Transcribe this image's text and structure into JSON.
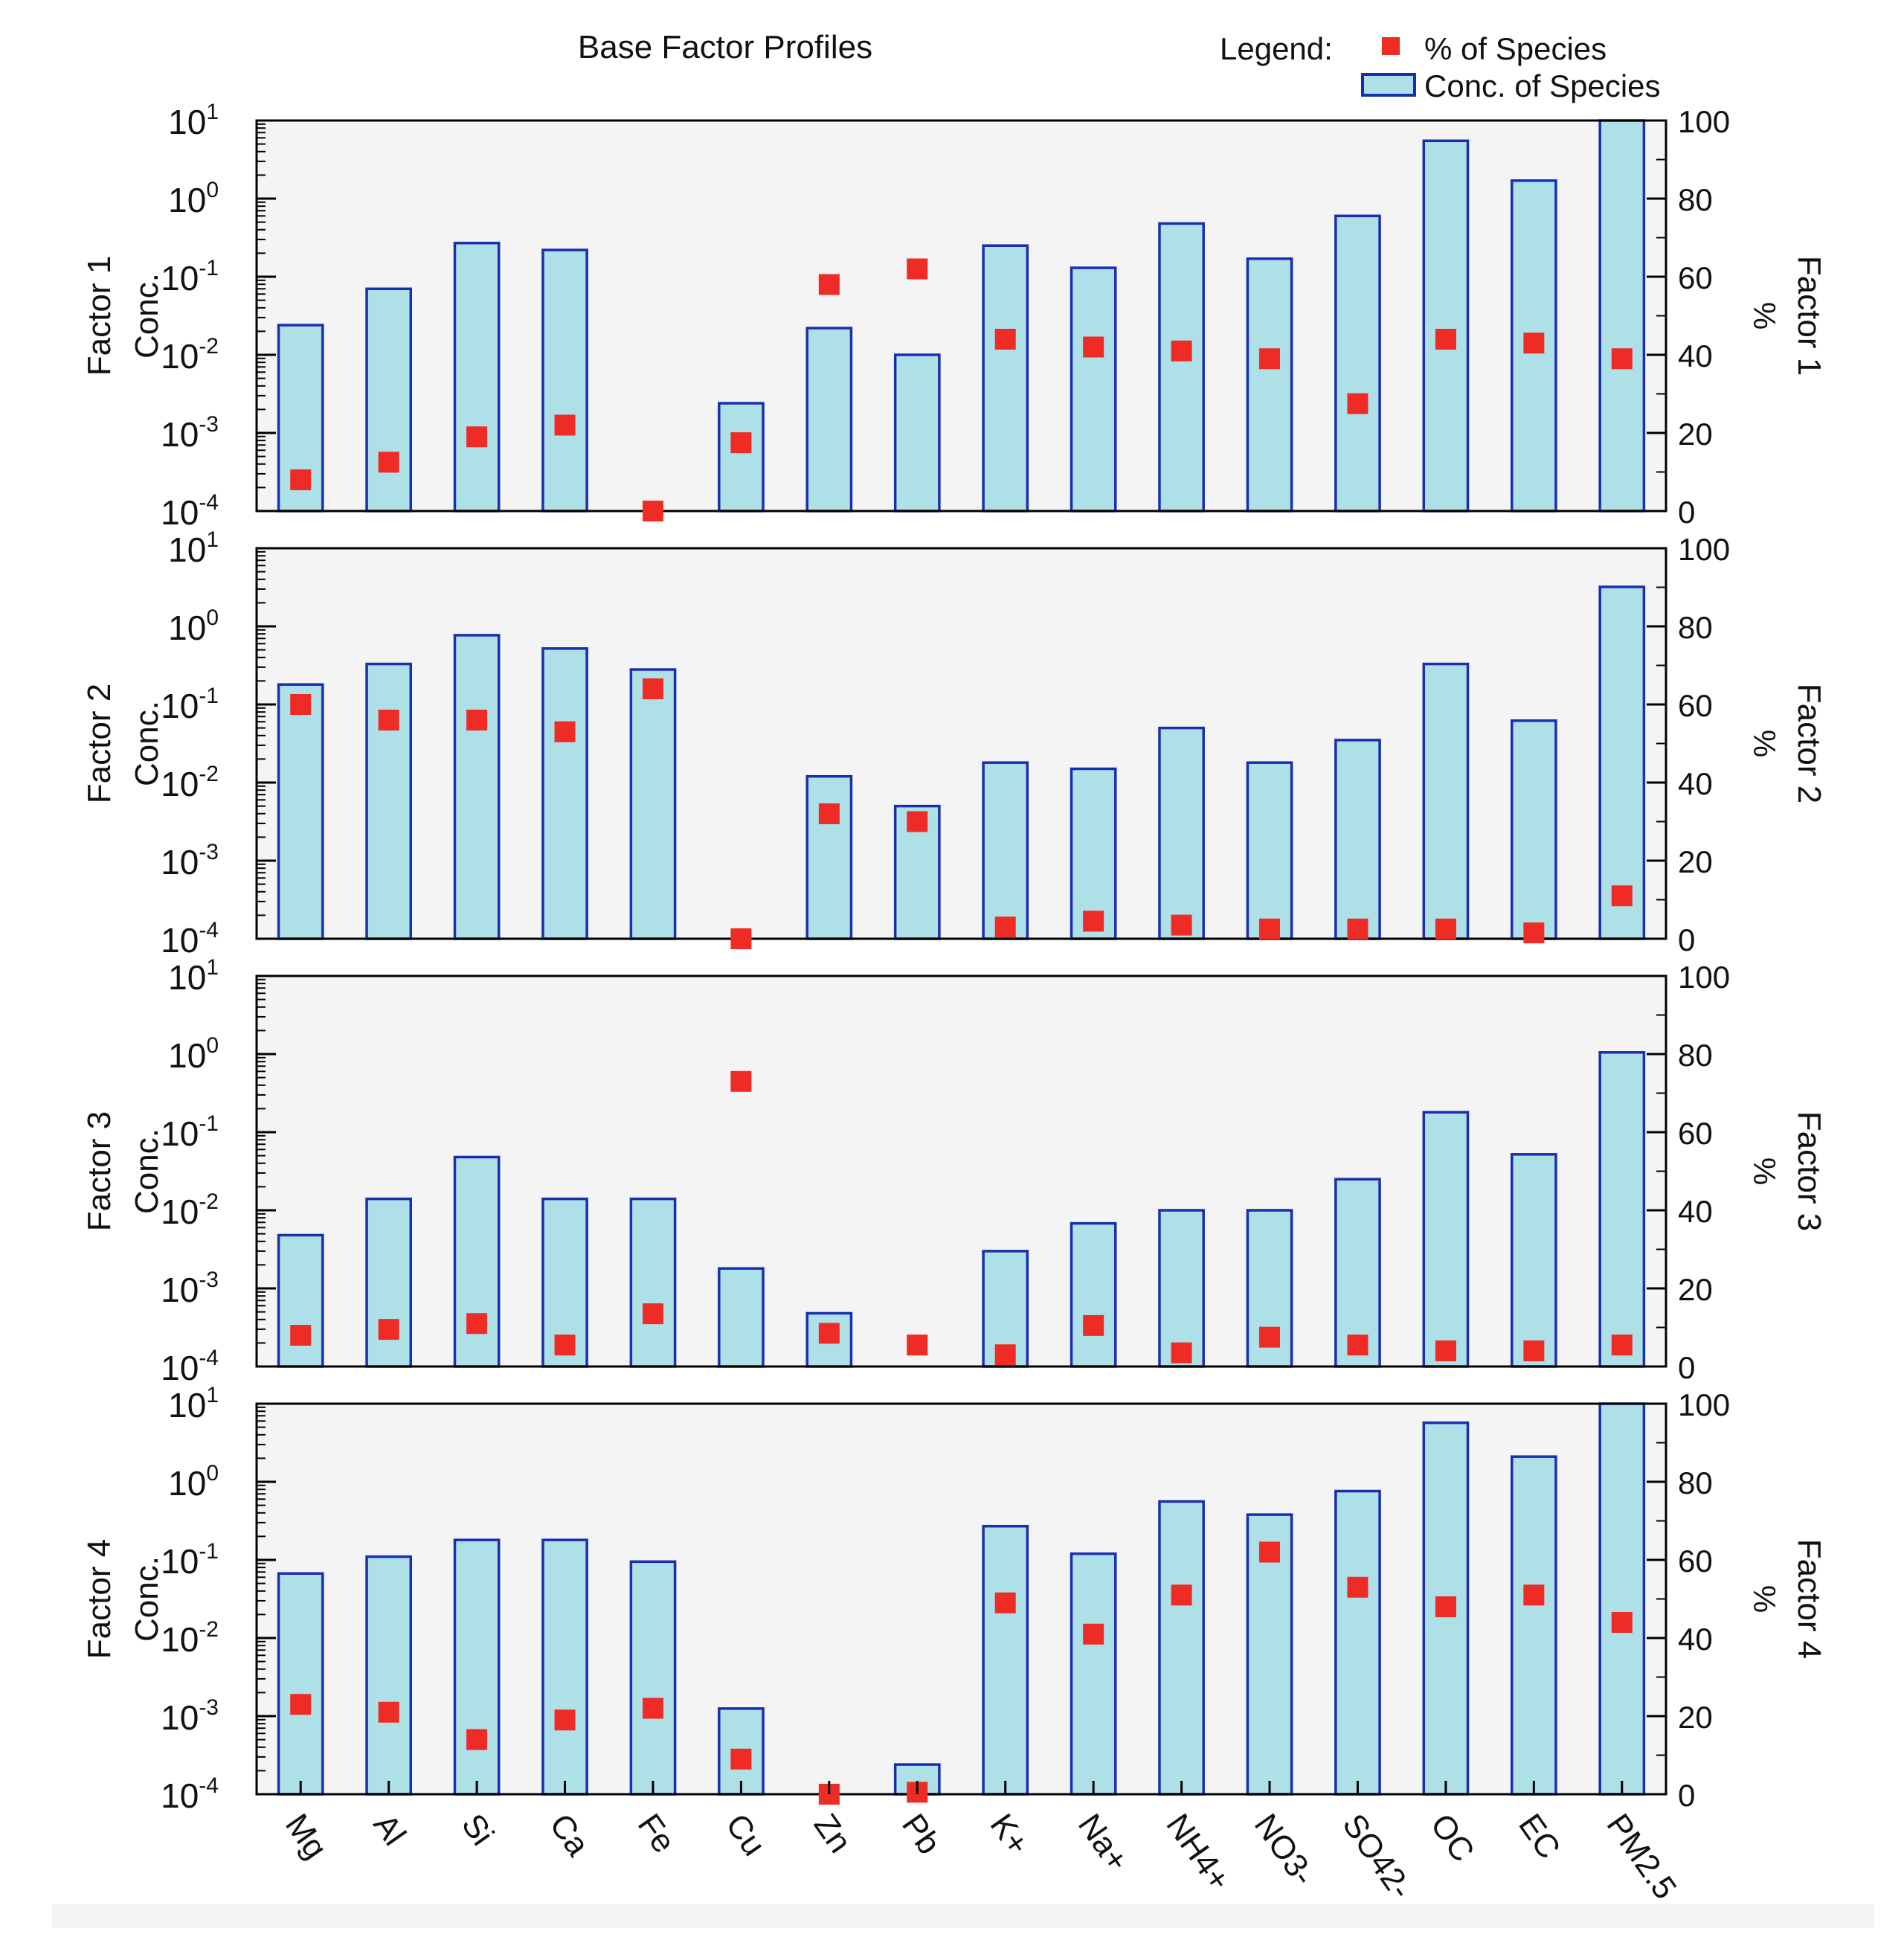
{
  "chart_data": {
    "type": "bar",
    "title": "Base Factor Profiles",
    "legend": {
      "label": "Legend:",
      "placement": "top-right",
      "entries": [
        "% of Species",
        "Conc. of Species"
      ]
    },
    "categories": [
      "Mg",
      "Al",
      "Si",
      "Ca",
      "Fe",
      "Cu",
      "Zn",
      "Pb",
      "K+",
      "Na+",
      "NH4+",
      "NO3-",
      "SO42-",
      "OC",
      "EC",
      "PM2.5"
    ],
    "left_axis": {
      "scale": "log",
      "ylim": [
        0.0001,
        10
      ],
      "tick_labels": [
        {
          "base": "10",
          "exp": "-4"
        },
        {
          "base": "10",
          "exp": "-3"
        },
        {
          "base": "10",
          "exp": "-2"
        },
        {
          "base": "10",
          "exp": "-1"
        },
        {
          "base": "10",
          "exp": "0"
        },
        {
          "base": "10",
          "exp": "1"
        }
      ]
    },
    "right_axis": {
      "scale": "linear",
      "ylim": [
        0,
        100
      ],
      "tick_labels": [
        "0",
        "20",
        "40",
        "60",
        "80",
        "100"
      ],
      "label": "%"
    },
    "colors": {
      "bar_fill": "#aee0e8",
      "bar_edge": "#1a2fb0",
      "marker": "#ee2b24",
      "plot_bg": "#f4f4f4",
      "axis": "#000000"
    },
    "panels": [
      {
        "name": "Factor 1",
        "ylabel": [
          "Factor 1",
          "Conc."
        ],
        "right_label": "Factor 1",
        "conc": [
          0.024,
          0.07,
          0.27,
          0.22,
          0.0001,
          0.0024,
          0.022,
          0.01,
          0.25,
          0.13,
          0.48,
          0.17,
          0.6,
          5.5,
          1.7,
          12
        ],
        "pct": [
          8,
          12.5,
          19,
          22,
          0,
          17.5,
          58,
          62,
          44,
          42,
          41,
          39,
          27.5,
          44,
          43,
          39
        ]
      },
      {
        "name": "Factor 2",
        "ylabel": [
          "Factor 2",
          "Conc."
        ],
        "right_label": "Factor 2",
        "conc": [
          0.18,
          0.33,
          0.77,
          0.52,
          0.28,
          0.0001,
          0.012,
          0.005,
          0.018,
          0.015,
          0.05,
          0.018,
          0.035,
          0.33,
          0.062,
          3.2
        ],
        "pct": [
          60,
          56,
          56,
          53,
          64,
          0,
          32,
          30,
          3,
          4.5,
          3.5,
          2.5,
          2.5,
          2.5,
          1.5,
          11
        ]
      },
      {
        "name": "Factor 3",
        "ylabel": [
          "Factor 3",
          "Conc."
        ],
        "right_label": "Factor 3",
        "conc": [
          0.0048,
          0.014,
          0.048,
          0.014,
          0.014,
          0.0018,
          0.00048,
          0.0001,
          0.003,
          0.0068,
          0.01,
          0.01,
          0.025,
          0.18,
          0.052,
          1.05
        ],
        "pct": [
          8,
          9.5,
          11,
          5.5,
          13.5,
          73,
          8.5,
          5.5,
          3,
          10.5,
          3.5,
          7.5,
          5.5,
          4,
          4,
          5.5
        ]
      },
      {
        "name": "Factor 4",
        "ylabel": [
          "Factor 4",
          "Conc."
        ],
        "right_label": "Factor 4",
        "conc": [
          0.067,
          0.11,
          0.18,
          0.18,
          0.095,
          0.00125,
          0.0001,
          0.00024,
          0.27,
          0.12,
          0.56,
          0.38,
          0.76,
          5.7,
          2.1,
          14
        ],
        "pct": [
          23,
          21,
          14,
          19,
          22,
          9,
          0,
          0.5,
          49,
          41,
          51,
          62,
          53,
          48,
          51,
          44
        ]
      }
    ]
  }
}
